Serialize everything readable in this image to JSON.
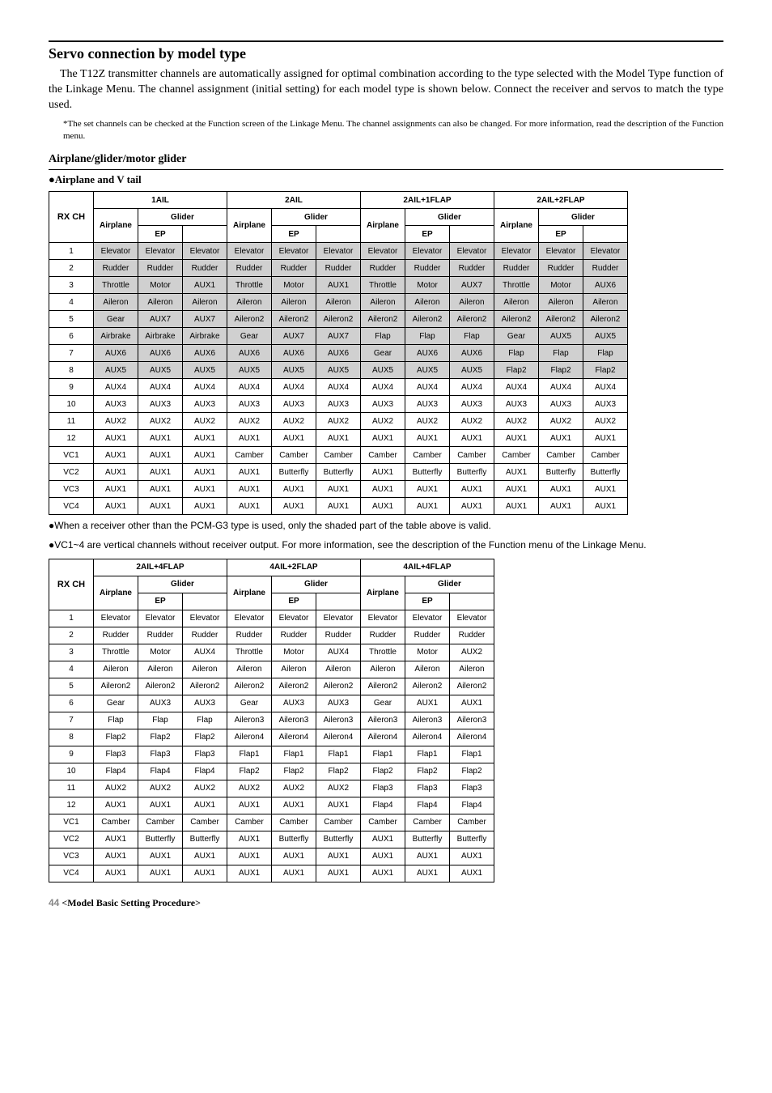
{
  "title": "Servo connection by model type",
  "intro": "The T12Z transmitter channels are automatically assigned for optimal combination according to the type selected with the Model Type function of the Linkage Menu. The channel assignment (initial setting) for each model type is shown below. Connect the receiver and servos to match the type used.",
  "note": "*The set channels can be checked at the Function screen of the Linkage Menu. The channel assignments can also be changed. For more information, read the description of the Function menu.",
  "sub_heading": "Airplane/glider/motor glider",
  "bullet_heading": "●Airplane and V tail",
  "rxch_label": "RX CH",
  "airplane_label": "Airplane",
  "glider_label": "Glider",
  "ep_label": "EP",
  "blank_label": "",
  "groups1": [
    "1AIL",
    "2AIL",
    "2AIL+1FLAP",
    "2AIL+2FLAP"
  ],
  "groups2": [
    "2AIL+4FLAP",
    "4AIL+2FLAP",
    "4AIL+4FLAP"
  ],
  "ch_rows": [
    "1",
    "2",
    "3",
    "4",
    "5",
    "6",
    "7",
    "8",
    "9",
    "10",
    "11",
    "12",
    "VC1",
    "VC2",
    "VC3",
    "VC4"
  ],
  "table1": {
    "data": [
      [
        "Elevator",
        "Elevator",
        "Elevator",
        "Elevator",
        "Elevator",
        "Elevator",
        "Elevator",
        "Elevator",
        "Elevator",
        "Elevator",
        "Elevator",
        "Elevator"
      ],
      [
        "Rudder",
        "Rudder",
        "Rudder",
        "Rudder",
        "Rudder",
        "Rudder",
        "Rudder",
        "Rudder",
        "Rudder",
        "Rudder",
        "Rudder",
        "Rudder"
      ],
      [
        "Throttle",
        "Motor",
        "AUX1",
        "Throttle",
        "Motor",
        "AUX1",
        "Throttle",
        "Motor",
        "AUX7",
        "Throttle",
        "Motor",
        "AUX6"
      ],
      [
        "Aileron",
        "Aileron",
        "Aileron",
        "Aileron",
        "Aileron",
        "Aileron",
        "Aileron",
        "Aileron",
        "Aileron",
        "Aileron",
        "Aileron",
        "Aileron"
      ],
      [
        "Gear",
        "AUX7",
        "AUX7",
        "Aileron2",
        "Aileron2",
        "Aileron2",
        "Aileron2",
        "Aileron2",
        "Aileron2",
        "Aileron2",
        "Aileron2",
        "Aileron2"
      ],
      [
        "Airbrake",
        "Airbrake",
        "Airbrake",
        "Gear",
        "AUX7",
        "AUX7",
        "Flap",
        "Flap",
        "Flap",
        "Gear",
        "AUX5",
        "AUX5"
      ],
      [
        "AUX6",
        "AUX6",
        "AUX6",
        "AUX6",
        "AUX6",
        "AUX6",
        "Gear",
        "AUX6",
        "AUX6",
        "Flap",
        "Flap",
        "Flap"
      ],
      [
        "AUX5",
        "AUX5",
        "AUX5",
        "AUX5",
        "AUX5",
        "AUX5",
        "AUX5",
        "AUX5",
        "AUX5",
        "Flap2",
        "Flap2",
        "Flap2"
      ],
      [
        "AUX4",
        "AUX4",
        "AUX4",
        "AUX4",
        "AUX4",
        "AUX4",
        "AUX4",
        "AUX4",
        "AUX4",
        "AUX4",
        "AUX4",
        "AUX4"
      ],
      [
        "AUX3",
        "AUX3",
        "AUX3",
        "AUX3",
        "AUX3",
        "AUX3",
        "AUX3",
        "AUX3",
        "AUX3",
        "AUX3",
        "AUX3",
        "AUX3"
      ],
      [
        "AUX2",
        "AUX2",
        "AUX2",
        "AUX2",
        "AUX2",
        "AUX2",
        "AUX2",
        "AUX2",
        "AUX2",
        "AUX2",
        "AUX2",
        "AUX2"
      ],
      [
        "AUX1",
        "AUX1",
        "AUX1",
        "AUX1",
        "AUX1",
        "AUX1",
        "AUX1",
        "AUX1",
        "AUX1",
        "AUX1",
        "AUX1",
        "AUX1"
      ],
      [
        "AUX1",
        "AUX1",
        "AUX1",
        "Camber",
        "Camber",
        "Camber",
        "Camber",
        "Camber",
        "Camber",
        "Camber",
        "Camber",
        "Camber"
      ],
      [
        "AUX1",
        "AUX1",
        "AUX1",
        "AUX1",
        "Butterfly",
        "Butterfly",
        "AUX1",
        "Butterfly",
        "Butterfly",
        "AUX1",
        "Butterfly",
        "Butterfly"
      ],
      [
        "AUX1",
        "AUX1",
        "AUX1",
        "AUX1",
        "AUX1",
        "AUX1",
        "AUX1",
        "AUX1",
        "AUX1",
        "AUX1",
        "AUX1",
        "AUX1"
      ],
      [
        "AUX1",
        "AUX1",
        "AUX1",
        "AUX1",
        "AUX1",
        "AUX1",
        "AUX1",
        "AUX1",
        "AUX1",
        "AUX1",
        "AUX1",
        "AUX1"
      ]
    ],
    "shaded_rows": [
      0,
      1,
      2,
      3,
      4,
      5,
      6,
      7
    ]
  },
  "table2": {
    "data": [
      [
        "Elevator",
        "Elevator",
        "Elevator",
        "Elevator",
        "Elevator",
        "Elevator",
        "Elevator",
        "Elevator",
        "Elevator"
      ],
      [
        "Rudder",
        "Rudder",
        "Rudder",
        "Rudder",
        "Rudder",
        "Rudder",
        "Rudder",
        "Rudder",
        "Rudder"
      ],
      [
        "Throttle",
        "Motor",
        "AUX4",
        "Throttle",
        "Motor",
        "AUX4",
        "Throttle",
        "Motor",
        "AUX2"
      ],
      [
        "Aileron",
        "Aileron",
        "Aileron",
        "Aileron",
        "Aileron",
        "Aileron",
        "Aileron",
        "Aileron",
        "Aileron"
      ],
      [
        "Aileron2",
        "Aileron2",
        "Aileron2",
        "Aileron2",
        "Aileron2",
        "Aileron2",
        "Aileron2",
        "Aileron2",
        "Aileron2"
      ],
      [
        "Gear",
        "AUX3",
        "AUX3",
        "Gear",
        "AUX3",
        "AUX3",
        "Gear",
        "AUX1",
        "AUX1"
      ],
      [
        "Flap",
        "Flap",
        "Flap",
        "Aileron3",
        "Aileron3",
        "Aileron3",
        "Aileron3",
        "Aileron3",
        "Aileron3"
      ],
      [
        "Flap2",
        "Flap2",
        "Flap2",
        "Aileron4",
        "Aileron4",
        "Aileron4",
        "Aileron4",
        "Aileron4",
        "Aileron4"
      ],
      [
        "Flap3",
        "Flap3",
        "Flap3",
        "Flap1",
        "Flap1",
        "Flap1",
        "Flap1",
        "Flap1",
        "Flap1"
      ],
      [
        "Flap4",
        "Flap4",
        "Flap4",
        "Flap2",
        "Flap2",
        "Flap2",
        "Flap2",
        "Flap2",
        "Flap2"
      ],
      [
        "AUX2",
        "AUX2",
        "AUX2",
        "AUX2",
        "AUX2",
        "AUX2",
        "Flap3",
        "Flap3",
        "Flap3"
      ],
      [
        "AUX1",
        "AUX1",
        "AUX1",
        "AUX1",
        "AUX1",
        "AUX1",
        "Flap4",
        "Flap4",
        "Flap4"
      ],
      [
        "Camber",
        "Camber",
        "Camber",
        "Camber",
        "Camber",
        "Camber",
        "Camber",
        "Camber",
        "Camber"
      ],
      [
        "AUX1",
        "Butterfly",
        "Butterfly",
        "AUX1",
        "Butterfly",
        "Butterfly",
        "AUX1",
        "Butterfly",
        "Butterfly"
      ],
      [
        "AUX1",
        "AUX1",
        "AUX1",
        "AUX1",
        "AUX1",
        "AUX1",
        "AUX1",
        "AUX1",
        "AUX1"
      ],
      [
        "AUX1",
        "AUX1",
        "AUX1",
        "AUX1",
        "AUX1",
        "AUX1",
        "AUX1",
        "AUX1",
        "AUX1"
      ]
    ]
  },
  "note_receiver": "●When a receiver other than the PCM-G3 type is used, only the shaded part of the table above is valid.",
  "note_vc": "●VC1~4 are vertical channels without receiver output. For more information, see the description of the Function menu of the Linkage Menu.",
  "footer_page": "44",
  "footer_text": "<Model Basic Setting Procedure>"
}
